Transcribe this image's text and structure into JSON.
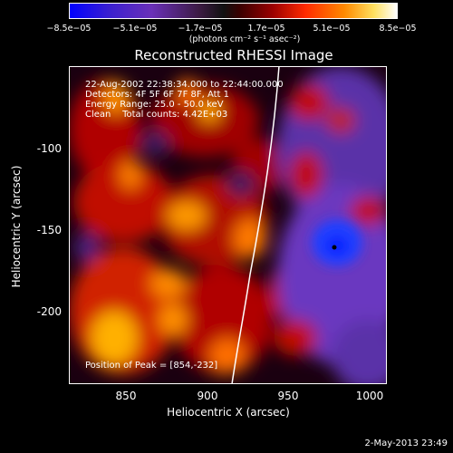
{
  "colorbar": {
    "ticks": [
      "−8.5e−05",
      "−5.1e−05",
      "−1.7e−05",
      "1.7e−05",
      "5.1e−05",
      "8.5e−05"
    ],
    "units": "(photons cm⁻² s⁻¹ asec⁻²)"
  },
  "title": "Reconstructed RHESSI Image",
  "info": {
    "time_range": "22-Aug-2002 22:38:34.000 to 22:44:00.000",
    "detectors": "Detectors: 4F 5F 6F 7F 8F, Att 1",
    "energy": "Energy Range: 25.0 - 50.0 keV",
    "clean": "Clean    Total counts: 4.42E+03"
  },
  "peak_label": "Position of Peak = [854,-232]",
  "axes": {
    "xlabel": "Heliocentric X (arcsec)",
    "ylabel": "Heliocentric Y (arcsec)",
    "xticks": [
      "850",
      "900",
      "950",
      "1000"
    ],
    "yticks": [
      "-100",
      "-150",
      "-200"
    ]
  },
  "timestamp": "2-May-2013 23:49"
}
